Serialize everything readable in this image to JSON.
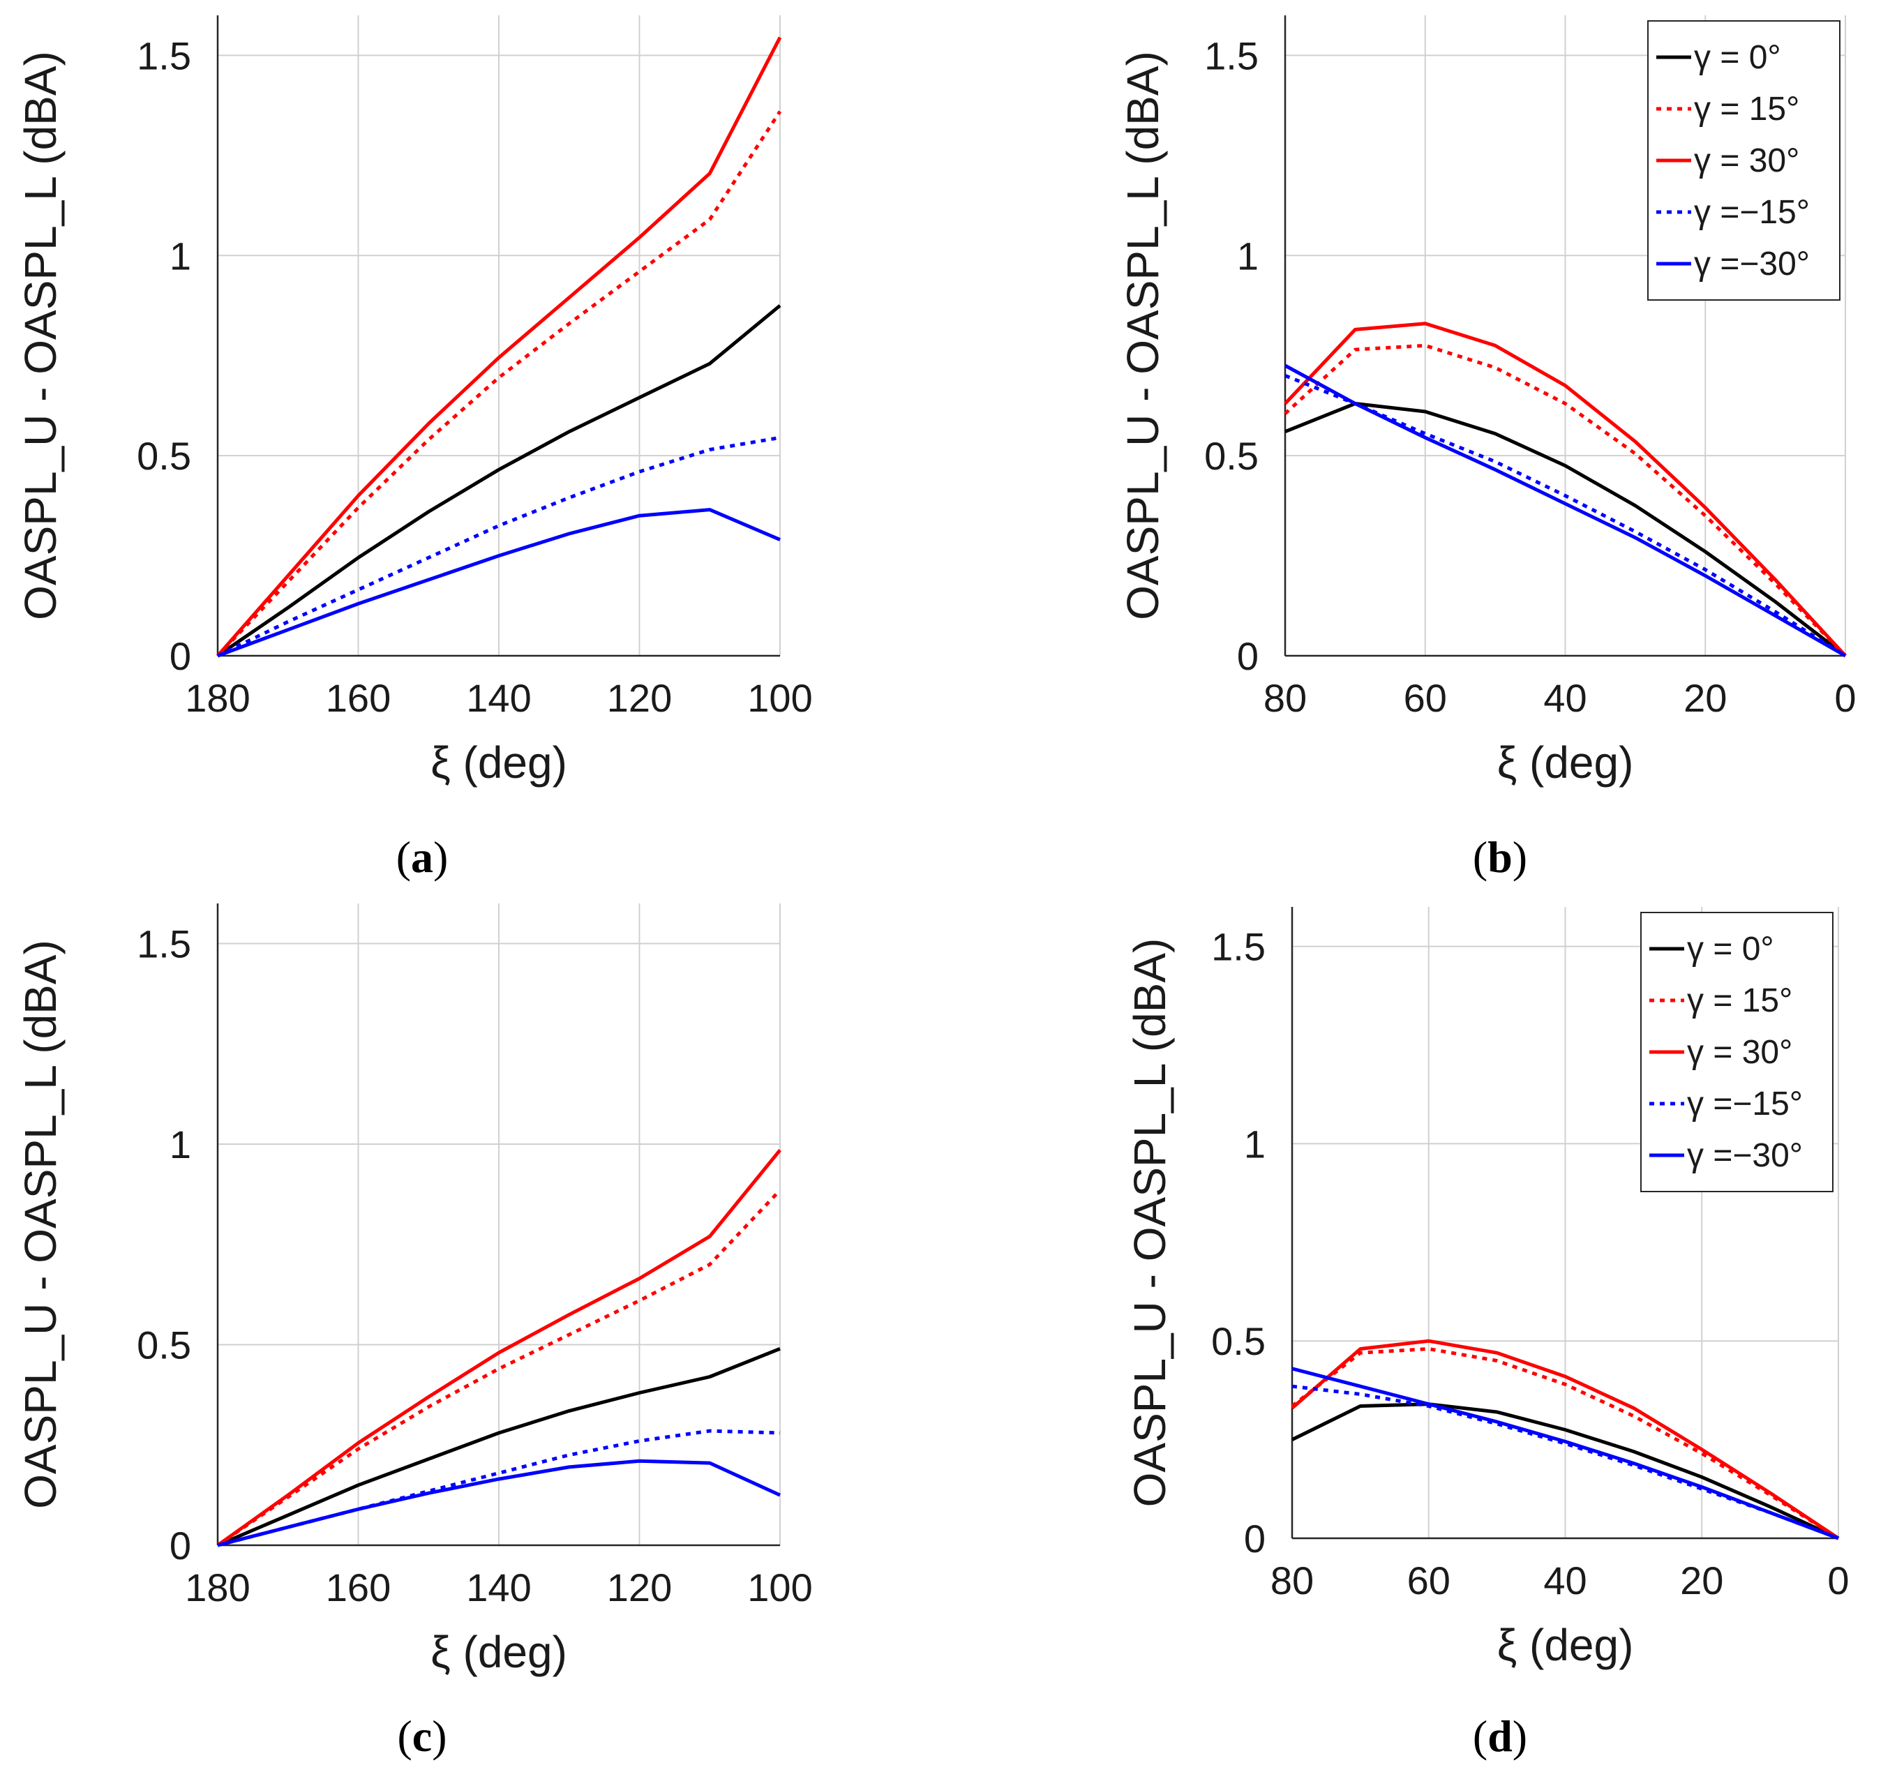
{
  "chart_data": [
    {
      "panel": "(a)",
      "panel_letter": "a",
      "type": "line",
      "xlabel": "ξ (deg)",
      "ylabel": "OASPL_U - OASPL_L (dBA)",
      "xlim": [
        180,
        100
      ],
      "x_reversed": true,
      "ylim": [
        0,
        1.6
      ],
      "xticks": [
        "180",
        "160",
        "140",
        "120",
        "100"
      ],
      "yticks": [
        "0",
        "0.5",
        "1",
        "1.5"
      ],
      "grid": true,
      "legend": false,
      "x": [
        180,
        170,
        160,
        150,
        140,
        130,
        120,
        110,
        100
      ],
      "series": [
        {
          "label": "γ = 0°",
          "color": "#000000",
          "dash": "solid",
          "values": [
            0,
            0.12,
            0.245,
            0.36,
            0.465,
            0.56,
            0.645,
            0.73,
            0.875
          ]
        },
        {
          "label": "γ = 15°",
          "color": "#ff0000",
          "dash": "dotted",
          "values": [
            0,
            0.185,
            0.37,
            0.54,
            0.695,
            0.83,
            0.96,
            1.09,
            1.36
          ]
        },
        {
          "label": "γ = 30°",
          "color": "#ff0000",
          "dash": "solid",
          "values": [
            0,
            0.2,
            0.4,
            0.58,
            0.745,
            0.895,
            1.045,
            1.205,
            1.545
          ]
        },
        {
          "label": "γ =−15°",
          "color": "#0000ff",
          "dash": "dotted",
          "values": [
            0,
            0.085,
            0.165,
            0.245,
            0.325,
            0.395,
            0.46,
            0.515,
            0.545
          ]
        },
        {
          "label": "γ =−30°",
          "color": "#0000ff",
          "dash": "solid",
          "values": [
            0,
            0.065,
            0.13,
            0.19,
            0.25,
            0.305,
            0.35,
            0.365,
            0.29
          ]
        }
      ]
    },
    {
      "panel": "(b)",
      "panel_letter": "b",
      "type": "line",
      "xlabel": "ξ (deg)",
      "ylabel": "OASPL_U - OASPL_L (dBA)",
      "xlim": [
        80,
        0
      ],
      "x_reversed": true,
      "ylim": [
        0,
        1.6
      ],
      "xticks": [
        "80",
        "60",
        "40",
        "20",
        "0"
      ],
      "yticks": [
        "0",
        "0.5",
        "1",
        "1.5"
      ],
      "grid": true,
      "legend": true,
      "legend_position": "top-right",
      "x": [
        80,
        70,
        60,
        50,
        40,
        30,
        20,
        10,
        0
      ],
      "series": [
        {
          "label": "γ = 0°",
          "color": "#000000",
          "dash": "solid",
          "values": [
            0.56,
            0.63,
            0.61,
            0.555,
            0.475,
            0.375,
            0.26,
            0.135,
            0
          ]
        },
        {
          "label": "γ = 15°",
          "color": "#ff0000",
          "dash": "dotted",
          "values": [
            0.605,
            0.765,
            0.775,
            0.72,
            0.63,
            0.505,
            0.35,
            0.18,
            0
          ]
        },
        {
          "label": "γ = 30°",
          "color": "#ff0000",
          "dash": "solid",
          "values": [
            0.63,
            0.815,
            0.83,
            0.775,
            0.675,
            0.535,
            0.37,
            0.19,
            0
          ]
        },
        {
          "label": "γ =−15°",
          "color": "#0000ff",
          "dash": "dotted",
          "values": [
            0.7,
            0.63,
            0.555,
            0.485,
            0.4,
            0.31,
            0.215,
            0.11,
            0
          ]
        },
        {
          "label": "γ =−30°",
          "color": "#0000ff",
          "dash": "solid",
          "values": [
            0.725,
            0.63,
            0.545,
            0.465,
            0.38,
            0.295,
            0.2,
            0.1,
            0
          ]
        }
      ]
    },
    {
      "panel": "(c)",
      "panel_letter": "c",
      "type": "line",
      "xlabel": "ξ (deg)",
      "ylabel": "OASPL_U - OASPL_L (dBA)",
      "xlim": [
        180,
        100
      ],
      "x_reversed": true,
      "ylim": [
        0,
        1.6
      ],
      "xticks": [
        "180",
        "160",
        "140",
        "120",
        "100"
      ],
      "yticks": [
        "0",
        "0.5",
        "1",
        "1.5"
      ],
      "grid": true,
      "legend": false,
      "x": [
        180,
        170,
        160,
        150,
        140,
        130,
        120,
        110,
        100
      ],
      "series": [
        {
          "label": "γ = 0°",
          "color": "#000000",
          "dash": "solid",
          "values": [
            0,
            0.075,
            0.15,
            0.215,
            0.28,
            0.335,
            0.38,
            0.42,
            0.49
          ]
        },
        {
          "label": "γ = 15°",
          "color": "#ff0000",
          "dash": "dotted",
          "values": [
            0,
            0.12,
            0.24,
            0.345,
            0.44,
            0.525,
            0.61,
            0.7,
            0.885
          ]
        },
        {
          "label": "γ = 30°",
          "color": "#ff0000",
          "dash": "solid",
          "values": [
            0,
            0.125,
            0.255,
            0.37,
            0.48,
            0.575,
            0.665,
            0.77,
            0.985
          ]
        },
        {
          "label": "γ =−15°",
          "color": "#0000ff",
          "dash": "dotted",
          "values": [
            0,
            0.045,
            0.09,
            0.135,
            0.18,
            0.225,
            0.26,
            0.285,
            0.28
          ]
        },
        {
          "label": "γ =−30°",
          "color": "#0000ff",
          "dash": "solid",
          "values": [
            0,
            0.045,
            0.09,
            0.13,
            0.165,
            0.195,
            0.21,
            0.205,
            0.125
          ]
        }
      ]
    },
    {
      "panel": "(d)",
      "panel_letter": "d",
      "type": "line",
      "xlabel": "ξ (deg)",
      "ylabel": "OASPL_U - OASPL_L (dBA)",
      "xlim": [
        80,
        0
      ],
      "x_reversed": true,
      "ylim": [
        0,
        1.6
      ],
      "xticks": [
        "80",
        "60",
        "40",
        "20",
        "0"
      ],
      "yticks": [
        "0",
        "0.5",
        "1",
        "1.5"
      ],
      "grid": true,
      "legend": true,
      "legend_position": "top-right",
      "x": [
        80,
        70,
        60,
        50,
        40,
        30,
        20,
        10,
        0
      ],
      "series": [
        {
          "label": "γ = 0°",
          "color": "#000000",
          "dash": "solid",
          "values": [
            0.25,
            0.335,
            0.34,
            0.32,
            0.275,
            0.22,
            0.155,
            0.08,
            0
          ]
        },
        {
          "label": "γ = 15°",
          "color": "#ff0000",
          "dash": "dotted",
          "values": [
            0.335,
            0.47,
            0.48,
            0.45,
            0.39,
            0.31,
            0.215,
            0.11,
            0
          ]
        },
        {
          "label": "γ = 30°",
          "color": "#ff0000",
          "dash": "solid",
          "values": [
            0.33,
            0.48,
            0.5,
            0.47,
            0.41,
            0.33,
            0.225,
            0.115,
            0
          ]
        },
        {
          "label": "γ =−15°",
          "color": "#0000ff",
          "dash": "dotted",
          "values": [
            0.385,
            0.365,
            0.335,
            0.29,
            0.24,
            0.185,
            0.125,
            0.065,
            0
          ]
        },
        {
          "label": "γ =−30°",
          "color": "#0000ff",
          "dash": "solid",
          "values": [
            0.43,
            0.385,
            0.34,
            0.295,
            0.245,
            0.19,
            0.13,
            0.065,
            0
          ]
        }
      ]
    }
  ]
}
